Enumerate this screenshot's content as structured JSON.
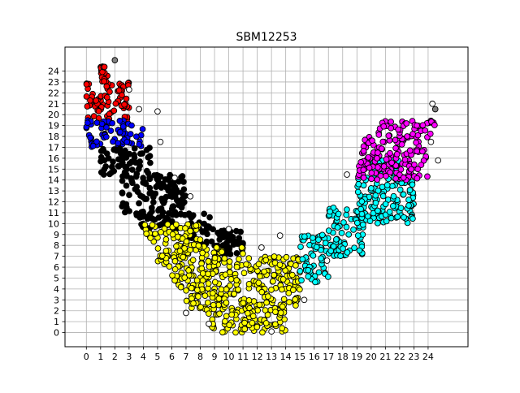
{
  "chart_data": {
    "type": "scatter",
    "title": "SBM12253",
    "xlabel": "",
    "ylabel": "",
    "xlim": [
      -1.5,
      26.8
    ],
    "ylim": [
      -1.3,
      26.2
    ],
    "xticks": [
      "0",
      "1",
      "2",
      "3",
      "4",
      "5",
      "6",
      "7",
      "8",
      "9",
      "10",
      "11",
      "12",
      "13",
      "14",
      "15",
      "16",
      "17",
      "18",
      "19",
      "20",
      "21",
      "22",
      "23",
      "24"
    ],
    "yticks": [
      "0",
      "1",
      "2",
      "3",
      "4",
      "5",
      "6",
      "7",
      "8",
      "9",
      "10",
      "11",
      "12",
      "13",
      "14",
      "15",
      "16",
      "17",
      "18",
      "19",
      "20",
      "21",
      "22",
      "23",
      "24"
    ],
    "grid": true,
    "legend": "none",
    "marker_edge_color": "#000000",
    "clusters": [
      {
        "color": "#ff0000",
        "regions": [
          {
            "x": [
              0,
              3
            ],
            "y": [
              19.5,
              23
            ]
          },
          {
            "x": [
              1,
              1.5
            ],
            "y": [
              23,
              24.5
            ]
          }
        ]
      },
      {
        "color": "#0000ff",
        "regions": [
          {
            "x": [
              0,
              4
            ],
            "y": [
              17,
              19.5
            ]
          }
        ]
      },
      {
        "color": "#000000",
        "regions": [
          {
            "x": [
              1,
              4.5
            ],
            "y": [
              14.5,
              17
            ]
          },
          {
            "x": [
              2.5,
              7
            ],
            "y": [
              11,
              14.5
            ]
          },
          {
            "x": [
              3.5,
              9
            ],
            "y": [
              9.5,
              11
            ]
          },
          {
            "x": [
              7,
              11
            ],
            "y": [
              8,
              9.5
            ]
          },
          {
            "x": [
              9,
              11
            ],
            "y": [
              7,
              8
            ]
          }
        ]
      },
      {
        "color": "#ffff00",
        "regions": [
          {
            "x": [
              4,
              8
            ],
            "y": [
              8,
              10
            ]
          },
          {
            "x": [
              5,
              11
            ],
            "y": [
              6,
              8
            ]
          },
          {
            "x": [
              6,
              15
            ],
            "y": [
              4,
              6
            ]
          },
          {
            "x": [
              7,
              15
            ],
            "y": [
              2,
              4
            ]
          },
          {
            "x": [
              8.5,
              14
            ],
            "y": [
              0,
              2
            ]
          },
          {
            "x": [
              11,
              15
            ],
            "y": [
              6,
              7
            ]
          }
        ]
      },
      {
        "color": "#00ffff",
        "regions": [
          {
            "x": [
              15,
              17
            ],
            "y": [
              4.5,
              9
            ]
          },
          {
            "x": [
              17,
              19.5
            ],
            "y": [
              7,
              11.5
            ]
          },
          {
            "x": [
              19,
              23
            ],
            "y": [
              10,
              14.5
            ]
          },
          {
            "x": [
              20,
              22
            ],
            "y": [
              14,
              16
            ]
          }
        ]
      },
      {
        "color": "#ff00ff",
        "regions": [
          {
            "x": [
              19,
              24
            ],
            "y": [
              14,
              18
            ]
          },
          {
            "x": [
              20.5,
              24.5
            ],
            "y": [
              18,
              19.5
            ]
          }
        ]
      }
    ],
    "outliers": [
      {
        "x": 2,
        "y": 25,
        "color": "#808080"
      },
      {
        "x": 24.5,
        "y": 20.5,
        "color": "#808080"
      },
      {
        "x": 24.3,
        "y": 21,
        "color": "#ffffff"
      },
      {
        "x": 24.7,
        "y": 15.8,
        "color": "#ffffff"
      },
      {
        "x": 5,
        "y": 20.3,
        "color": "#ffffff"
      },
      {
        "x": 3,
        "y": 22.3,
        "color": "#ffffff"
      },
      {
        "x": 3.7,
        "y": 20.5,
        "color": "#ffffff"
      },
      {
        "x": 5.2,
        "y": 17.5,
        "color": "#ffffff"
      },
      {
        "x": 10,
        "y": 9.5,
        "color": "#ffffff"
      },
      {
        "x": 12.3,
        "y": 7.8,
        "color": "#ffffff"
      },
      {
        "x": 13.6,
        "y": 8.9,
        "color": "#ffffff"
      },
      {
        "x": 15.3,
        "y": 3,
        "color": "#ffffff"
      },
      {
        "x": 8.6,
        "y": 0.8,
        "color": "#ffffff"
      },
      {
        "x": 13,
        "y": 0.1,
        "color": "#ffffff"
      },
      {
        "x": 7,
        "y": 1.8,
        "color": "#ffffff"
      },
      {
        "x": 24.2,
        "y": 17.5,
        "color": "#ffffff"
      },
      {
        "x": 18.3,
        "y": 14.5,
        "color": "#ffffff"
      },
      {
        "x": 16.9,
        "y": 6.6,
        "color": "#ffffff"
      },
      {
        "x": 6.2,
        "y": 14.2,
        "color": "#ffffff"
      },
      {
        "x": 7.3,
        "y": 12.5,
        "color": "#ffffff"
      }
    ]
  }
}
